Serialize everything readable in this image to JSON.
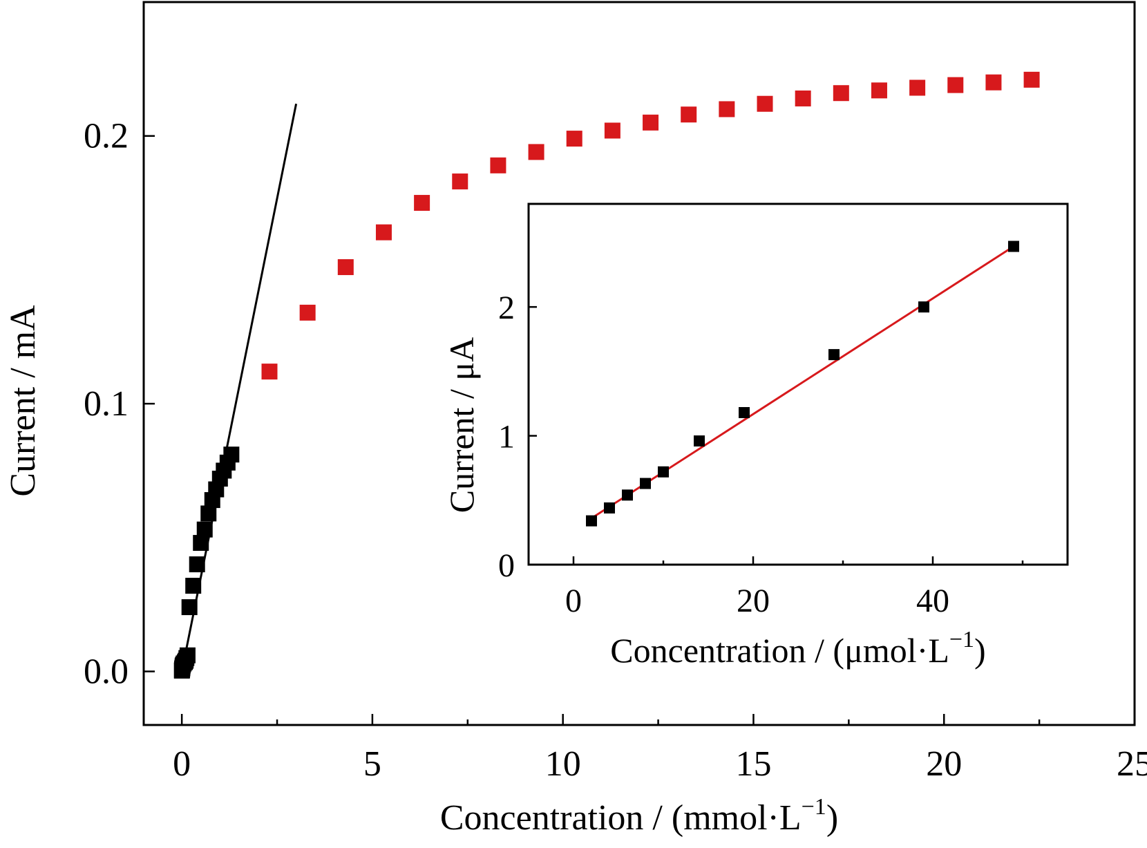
{
  "chart_data": [
    {
      "type": "scatter",
      "xlabel": "Concentration / (mmol·L",
      "xlabel_sup": "−1",
      "xlabel_close": ")",
      "ylabel": "Current / mA",
      "xlim": [
        -1,
        25
      ],
      "ylim": [
        -0.02,
        0.25
      ],
      "xticks": [
        0,
        5,
        10,
        15,
        20,
        25
      ],
      "yticks": [
        0.0,
        0.1,
        0.2
      ],
      "ytick_labels": [
        "0.0",
        "0.1",
        "0.2"
      ],
      "grid": false,
      "series": [
        {
          "color": "#000000",
          "marker": "square",
          "x": [
            0.002,
            0.004,
            0.006,
            0.008,
            0.01,
            0.014,
            0.02,
            0.03,
            0.05,
            0.08,
            0.1,
            0.12,
            0.15,
            0.2,
            0.3,
            0.4,
            0.5,
            0.6,
            0.7,
            0.8,
            0.9,
            1.0,
            1.1,
            1.2,
            1.3
          ],
          "y": [
            0.0003,
            0.0005,
            0.0007,
            0.0009,
            0.0011,
            0.0014,
            0.002,
            0.0025,
            0.003,
            0.0035,
            0.004,
            0.005,
            0.006,
            0.024,
            0.032,
            0.04,
            0.048,
            0.053,
            0.059,
            0.064,
            0.068,
            0.072,
            0.075,
            0.078,
            0.081
          ]
        },
        {
          "color": "#d7191c",
          "marker": "square",
          "x": [
            2.3,
            3.3,
            4.3,
            5.3,
            6.3,
            7.3,
            8.3,
            9.3,
            10.3,
            11.3,
            12.3,
            13.3,
            14.3,
            15.3,
            16.3,
            17.3,
            18.3,
            19.3,
            20.3,
            21.3,
            22.3
          ],
          "y": [
            0.112,
            0.134,
            0.151,
            0.164,
            0.175,
            0.183,
            0.189,
            0.194,
            0.199,
            0.202,
            0.205,
            0.208,
            0.21,
            0.212,
            0.214,
            0.216,
            0.217,
            0.218,
            0.219,
            0.22,
            0.221
          ]
        }
      ],
      "fit_line": {
        "color": "#000000",
        "x": [
          0.0,
          3.0
        ],
        "y": [
          0.0,
          0.212
        ]
      }
    },
    {
      "type": "scatter",
      "xlabel": "Concentration / (μmol·L",
      "xlabel_sup": "−1",
      "xlabel_close": ")",
      "ylabel": "Current / μA",
      "xlim": [
        -5,
        55
      ],
      "ylim": [
        0,
        2.8
      ],
      "xticks": [
        0,
        20,
        40
      ],
      "yticks": [
        0,
        1,
        2
      ],
      "grid": false,
      "series": [
        {
          "color": "#000000",
          "marker": "square",
          "x": [
            2,
            4,
            6,
            8,
            10,
            14,
            19,
            29,
            39,
            49
          ],
          "y": [
            0.34,
            0.44,
            0.54,
            0.63,
            0.72,
            0.96,
            1.18,
            1.63,
            2.0,
            2.47
          ]
        }
      ],
      "fit_line": {
        "color": "#d7191c",
        "x": [
          2,
          49
        ],
        "y": [
          0.36,
          2.47
        ]
      }
    }
  ]
}
